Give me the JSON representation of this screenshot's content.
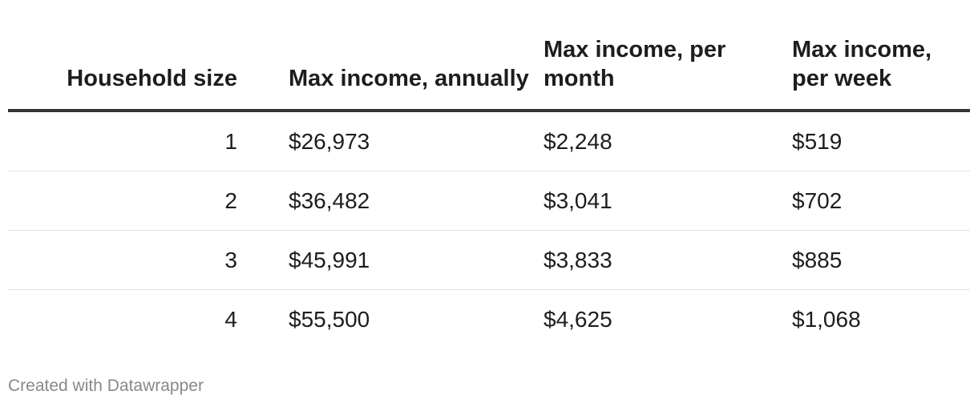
{
  "chart_data": {
    "type": "table",
    "columns": [
      "Household size",
      "Max income, annually",
      "Max income, per month",
      "Max income, per week"
    ],
    "rows": [
      [
        "1",
        "$26,973",
        "$2,248",
        "$519"
      ],
      [
        "2",
        "$36,482",
        "$3,041",
        "$702"
      ],
      [
        "3",
        "$45,991",
        "$3,833",
        "$885"
      ],
      [
        "4",
        "$55,500",
        "$4,625",
        "$1,068"
      ]
    ]
  },
  "footer": {
    "credit": "Created with Datawrapper"
  }
}
